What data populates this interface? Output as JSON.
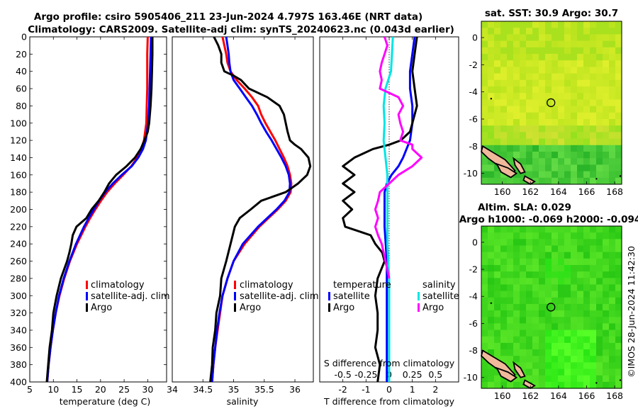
{
  "title": {
    "line1": "Argo profile: csiro 5905406_211 23-Jun-2024 4.797S 163.46E (NRT data)",
    "line2": "Climatology: CARS2009. Satellite-adj clim: synTS_20240623.nc (0.043d earlier)"
  },
  "watermark": "©IMOS 28-Jun-2024 11:42:30",
  "colors": {
    "climatology": "#ff0000",
    "satellite": "#0000ff",
    "argo": "#000000",
    "sat_s": "#00e5e5",
    "argo_s": "#ff00ff"
  },
  "chart_data": [
    {
      "id": "temperature",
      "type": "line",
      "xlabel": "temperature (deg C)",
      "ylabel": "",
      "xlim": [
        5,
        34
      ],
      "ylim": [
        0,
        400
      ],
      "y_inverted": true,
      "xticks": [
        5,
        10,
        15,
        20,
        25,
        30
      ],
      "yticks": [
        0,
        20,
        40,
        60,
        80,
        100,
        120,
        140,
        160,
        180,
        200,
        220,
        240,
        260,
        280,
        300,
        320,
        340,
        360,
        380,
        400
      ],
      "legend": [
        "climatology",
        "satellite-adj. clim",
        "Argo"
      ],
      "series": [
        {
          "name": "climatology",
          "color": "#ff0000",
          "depth": [
            0,
            20,
            40,
            60,
            80,
            100,
            120,
            130,
            140,
            150,
            160,
            170,
            180,
            190,
            200,
            210,
            220,
            240,
            260,
            280,
            300,
            320,
            340,
            360,
            380,
            400
          ],
          "values": [
            30.0,
            29.9,
            29.9,
            29.9,
            29.8,
            29.7,
            29.2,
            28.6,
            27.8,
            26.5,
            24.8,
            23.0,
            21.4,
            20.1,
            18.9,
            17.8,
            16.8,
            15.0,
            13.5,
            12.3,
            11.3,
            10.5,
            9.9,
            9.4,
            9.0,
            8.7
          ]
        },
        {
          "name": "satellite-adj. clim",
          "color": "#0000ff",
          "depth": [
            0,
            20,
            40,
            60,
            80,
            100,
            120,
            130,
            140,
            150,
            160,
            170,
            180,
            190,
            200,
            210,
            220,
            240,
            260,
            280,
            300,
            320,
            340,
            360,
            380,
            400
          ],
          "values": [
            30.7,
            30.6,
            30.5,
            30.4,
            30.3,
            30.1,
            29.6,
            29.0,
            28.0,
            26.6,
            24.5,
            22.6,
            21.0,
            19.7,
            18.6,
            17.5,
            16.5,
            14.8,
            13.4,
            12.2,
            11.2,
            10.5,
            9.9,
            9.4,
            9.0,
            8.7
          ]
        },
        {
          "name": "Argo",
          "color": "#000000",
          "depth": [
            0,
            20,
            40,
            60,
            80,
            100,
            110,
            120,
            130,
            140,
            150,
            160,
            170,
            180,
            190,
            200,
            210,
            220,
            230,
            240,
            250,
            260,
            280,
            300,
            320,
            340,
            360,
            380,
            400
          ],
          "values": [
            31.0,
            31.0,
            30.9,
            30.8,
            30.6,
            30.3,
            30.0,
            29.3,
            28.5,
            27.3,
            25.5,
            23.3,
            21.8,
            20.8,
            19.6,
            18.1,
            17.0,
            14.9,
            14.1,
            13.8,
            13.4,
            12.9,
            11.6,
            10.7,
            10.0,
            9.7,
            9.2,
            8.9,
            8.6
          ]
        }
      ]
    },
    {
      "id": "salinity",
      "type": "line",
      "xlabel": "salinity",
      "xlim": [
        34.0,
        36.3
      ],
      "ylim": [
        0,
        400
      ],
      "y_inverted": true,
      "xticks": [
        34,
        34.5,
        35,
        35.5,
        36
      ],
      "xticklabels": [
        "34",
        "34.5",
        "35",
        "35.5",
        "36"
      ],
      "legend": [
        "climatology",
        "satellite-adj. clim",
        "Argo"
      ],
      "series": [
        {
          "name": "climatology",
          "color": "#ff0000",
          "depth": [
            0,
            10,
            20,
            30,
            40,
            50,
            60,
            70,
            80,
            90,
            100,
            110,
            120,
            130,
            140,
            150,
            160,
            170,
            180,
            190,
            200,
            220,
            240,
            260,
            280,
            300,
            320,
            340,
            360,
            380,
            400
          ],
          "values": [
            34.82,
            34.85,
            34.88,
            34.9,
            34.95,
            35.05,
            35.18,
            35.3,
            35.4,
            35.45,
            35.52,
            35.6,
            35.68,
            35.75,
            35.82,
            35.88,
            35.92,
            35.94,
            35.93,
            35.85,
            35.72,
            35.42,
            35.18,
            35.0,
            34.9,
            34.82,
            34.78,
            34.74,
            34.7,
            34.67,
            34.65
          ]
        },
        {
          "name": "satellite-adj. clim",
          "color": "#0000ff",
          "depth": [
            0,
            10,
            20,
            30,
            40,
            50,
            60,
            70,
            80,
            90,
            100,
            110,
            120,
            130,
            140,
            150,
            160,
            170,
            180,
            190,
            200,
            220,
            240,
            260,
            280,
            300,
            320,
            340,
            360,
            380,
            400
          ],
          "values": [
            34.88,
            34.9,
            34.92,
            34.93,
            34.95,
            35.0,
            35.1,
            35.2,
            35.3,
            35.38,
            35.45,
            35.53,
            35.62,
            35.7,
            35.78,
            35.85,
            35.9,
            35.92,
            35.91,
            35.83,
            35.7,
            35.4,
            35.15,
            35.0,
            34.9,
            34.82,
            34.77,
            34.73,
            34.7,
            34.67,
            34.65
          ]
        },
        {
          "name": "Argo",
          "color": "#000000",
          "depth": [
            0,
            10,
            20,
            30,
            40,
            45,
            50,
            60,
            70,
            80,
            90,
            100,
            110,
            120,
            125,
            130,
            140,
            150,
            160,
            170,
            180,
            190,
            200,
            210,
            220,
            240,
            260,
            280,
            300,
            320,
            340,
            360,
            380,
            400
          ],
          "values": [
            34.68,
            34.75,
            34.8,
            34.8,
            34.85,
            35.0,
            35.12,
            35.25,
            35.55,
            35.75,
            35.82,
            35.85,
            35.88,
            35.92,
            36.0,
            36.1,
            36.22,
            36.25,
            36.2,
            36.05,
            35.85,
            35.45,
            35.28,
            35.1,
            35.02,
            34.95,
            34.88,
            34.8,
            34.78,
            34.72,
            34.7,
            34.66,
            34.65,
            34.62
          ]
        }
      ]
    },
    {
      "id": "differences",
      "type": "line",
      "xlabel": "T difference from climatology",
      "top_xlabel": "S difference from climatology",
      "xlim": [
        -3,
        3
      ],
      "xlim_s": [
        -0.75,
        0.75
      ],
      "ylim": [
        0,
        400
      ],
      "y_inverted": true,
      "xticks": [
        -2,
        -1,
        0,
        1,
        2
      ],
      "xticks_s": [
        -0.5,
        -0.25,
        0,
        0.25,
        0.5
      ],
      "xticklabels_s": [
        "-0.5",
        "-0.25",
        "0",
        "0.25",
        "0.5"
      ],
      "legend_t": {
        "header": "temperature",
        "items": [
          "satellite",
          "Argo"
        ]
      },
      "legend_s": {
        "header": "salinity",
        "items": [
          "satellite",
          "Argo"
        ]
      },
      "series": [
        {
          "name": "T satellite",
          "color": "#0000ff",
          "depth": [
            0,
            20,
            40,
            60,
            80,
            100,
            120,
            140,
            150,
            160,
            170,
            180,
            200,
            220,
            240,
            260,
            280,
            300,
            320,
            340,
            360,
            380,
            400
          ],
          "values": [
            1.1,
            1.0,
            0.9,
            0.9,
            1.0,
            1.0,
            0.9,
            0.6,
            0.4,
            0.1,
            -0.1,
            -0.2,
            -0.2,
            -0.2,
            -0.15,
            -0.1,
            -0.1,
            -0.1,
            -0.1,
            -0.1,
            -0.1,
            -0.1,
            -0.1
          ]
        },
        {
          "name": "T Argo",
          "color": "#000000",
          "depth": [
            0,
            20,
            40,
            60,
            80,
            100,
            110,
            120,
            125,
            130,
            140,
            150,
            160,
            170,
            180,
            190,
            200,
            210,
            220,
            230,
            240,
            250,
            260,
            280,
            300,
            320,
            340,
            360,
            380,
            400
          ],
          "values": [
            1.2,
            1.1,
            1.0,
            1.1,
            1.2,
            1.0,
            0.9,
            0.5,
            0.0,
            -0.7,
            -1.5,
            -2.0,
            -1.5,
            -2.0,
            -1.5,
            -2.0,
            -1.6,
            -2.0,
            -1.9,
            -0.8,
            -0.6,
            -0.3,
            -0.2,
            -0.5,
            -0.6,
            -0.5,
            -0.5,
            -0.6,
            -0.4,
            -0.5
          ]
        },
        {
          "name": "S satellite",
          "color": "#00e5e5",
          "scale": "s",
          "depth": [
            0,
            20,
            40,
            60,
            80,
            100,
            120,
            140,
            160,
            180,
            200,
            220,
            240,
            260,
            280,
            300,
            320,
            340,
            360,
            380,
            400
          ],
          "values": [
            0.04,
            0.03,
            0.02,
            -0.04,
            -0.06,
            -0.05,
            -0.06,
            -0.04,
            -0.02,
            -0.02,
            -0.02,
            -0.02,
            -0.02,
            -0.01,
            0.0,
            0.0,
            0.0,
            0.0,
            0.0,
            0.0,
            0.0
          ]
        },
        {
          "name": "S Argo",
          "color": "#ff00ff",
          "scale": "s",
          "depth": [
            0,
            10,
            20,
            30,
            40,
            50,
            60,
            70,
            80,
            90,
            100,
            110,
            120,
            125,
            130,
            140,
            150,
            160,
            170,
            180,
            190,
            200,
            210,
            220,
            230,
            240,
            250,
            260,
            270,
            280
          ],
          "values": [
            -0.05,
            -0.02,
            -0.05,
            -0.08,
            -0.1,
            -0.08,
            -0.1,
            0.1,
            0.15,
            0.1,
            0.12,
            0.15,
            0.12,
            0.25,
            0.25,
            0.35,
            0.25,
            0.1,
            0.0,
            -0.1,
            -0.12,
            -0.15,
            -0.12,
            -0.15,
            -0.12,
            -0.08,
            -0.06,
            -0.04,
            -0.02,
            0.0
          ]
        }
      ]
    },
    {
      "id": "map_sst",
      "type": "heatmap",
      "title": "sat. SST: 30.9 Argo: 30.7",
      "xticks": [
        160,
        162,
        164,
        166,
        168
      ],
      "yticks": [
        0,
        -2,
        -4,
        -6,
        -8,
        -10
      ],
      "xlim": [
        158.5,
        168.5
      ],
      "ylim": [
        -10.8,
        1.2
      ],
      "marker": {
        "lon": 163.46,
        "lat": -4.797
      }
    },
    {
      "id": "map_sla",
      "type": "heatmap",
      "title": "Altim. SLA: 0.029",
      "subtitle": "Argo h1000: -0.069 h2000: -0.094",
      "xticks": [
        160,
        162,
        164,
        166,
        168
      ],
      "yticks": [
        0,
        -2,
        -4,
        -6,
        -8,
        -10
      ],
      "xlim": [
        158.5,
        168.5
      ],
      "ylim": [
        -10.8,
        1.2
      ],
      "marker": {
        "lon": 163.46,
        "lat": -4.797
      }
    }
  ]
}
